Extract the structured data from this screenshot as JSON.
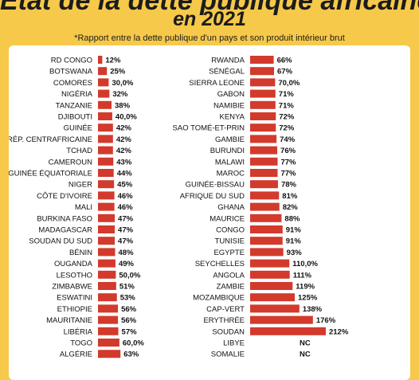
{
  "chart_data": {
    "type": "bar",
    "title": "Etat de la dette publique africaine",
    "subtitle": "en 2021",
    "note": "*Rapport entre la dette publique d'un pays et son produit intérieur brut",
    "bar_color": "#d23a2c",
    "left_column": [
      {
        "country": "RD CONGO",
        "value": 12,
        "label": "12%"
      },
      {
        "country": "BOTSWANA",
        "value": 25,
        "label": "25%"
      },
      {
        "country": "COMORES",
        "value": 30,
        "label": "30,0%"
      },
      {
        "country": "NIGÉRIA",
        "value": 32,
        "label": "32%"
      },
      {
        "country": "TANZANIE",
        "value": 38,
        "label": "38%"
      },
      {
        "country": "DJIBOUTI",
        "value": 40,
        "label": "40,0%"
      },
      {
        "country": "GUINÉE",
        "value": 42,
        "label": "42%"
      },
      {
        "country": "RÉP. CENTRAFRICAINE",
        "value": 42,
        "label": "42%"
      },
      {
        "country": "TCHAD",
        "value": 42,
        "label": "42%"
      },
      {
        "country": "CAMEROUN",
        "value": 43,
        "label": "43%"
      },
      {
        "country": "GUINÉE ÉQUATORIALE",
        "value": 44,
        "label": "44%"
      },
      {
        "country": "NIGER",
        "value": 45,
        "label": "45%"
      },
      {
        "country": "CÔTE D'IVOIRE",
        "value": 46,
        "label": "46%"
      },
      {
        "country": "MALI",
        "value": 46,
        "label": "46%"
      },
      {
        "country": "BURKINA FASO",
        "value": 47,
        "label": "47%"
      },
      {
        "country": "MADAGASCAR",
        "value": 47,
        "label": "47%"
      },
      {
        "country": "SOUDAN DU SUD",
        "value": 47,
        "label": "47%"
      },
      {
        "country": "BÉNIN",
        "value": 48,
        "label": "48%"
      },
      {
        "country": "OUGANDA",
        "value": 49,
        "label": "49%"
      },
      {
        "country": "LESOTHO",
        "value": 50,
        "label": "50,0%"
      },
      {
        "country": "ZIMBABWE",
        "value": 51,
        "label": "51%"
      },
      {
        "country": "ESWATINI",
        "value": 53,
        "label": "53%"
      },
      {
        "country": "ETHIOPIE",
        "value": 56,
        "label": "56%"
      },
      {
        "country": "MAURITANIE",
        "value": 56,
        "label": "56%"
      },
      {
        "country": "LIBÉRIA",
        "value": 57,
        "label": "57%"
      },
      {
        "country": "TOGO",
        "value": 60,
        "label": "60,0%"
      },
      {
        "country": "ALGÉRIE",
        "value": 63,
        "label": "63%"
      }
    ],
    "right_column": [
      {
        "country": "RWANDA",
        "value": 66,
        "label": "66%"
      },
      {
        "country": "SÉNÉGAL",
        "value": 67,
        "label": "67%"
      },
      {
        "country": "SIERRA LEONE",
        "value": 70,
        "label": "70,0%"
      },
      {
        "country": "GABON",
        "value": 71,
        "label": "71%"
      },
      {
        "country": "NAMIBIE",
        "value": 71,
        "label": "71%"
      },
      {
        "country": "KENYA",
        "value": 72,
        "label": "72%"
      },
      {
        "country": "SAO TOMÉ-ET-PRIN",
        "value": 72,
        "label": "72%"
      },
      {
        "country": "GAMBIE",
        "value": 74,
        "label": "74%"
      },
      {
        "country": "BURUNDI",
        "value": 76,
        "label": "76%"
      },
      {
        "country": "MALAWI",
        "value": 77,
        "label": "77%"
      },
      {
        "country": "MAROC",
        "value": 77,
        "label": "77%"
      },
      {
        "country": "GUINÉE-BISSAU",
        "value": 78,
        "label": "78%"
      },
      {
        "country": "AFRIQUE DU SUD",
        "value": 81,
        "label": "81%"
      },
      {
        "country": "GHANA",
        "value": 82,
        "label": "82%"
      },
      {
        "country": "MAURICE",
        "value": 88,
        "label": "88%"
      },
      {
        "country": "CONGO",
        "value": 91,
        "label": "91%"
      },
      {
        "country": "TUNISIE",
        "value": 91,
        "label": "91%"
      },
      {
        "country": "EGYPTE",
        "value": 93,
        "label": "93%"
      },
      {
        "country": "SEYCHELLES",
        "value": 110,
        "label": "110,0%"
      },
      {
        "country": "ANGOLA",
        "value": 111,
        "label": "111%"
      },
      {
        "country": "ZAMBIE",
        "value": 119,
        "label": "119%"
      },
      {
        "country": "MOZAMBIQUE",
        "value": 125,
        "label": "125%"
      },
      {
        "country": "CAP-VERT",
        "value": 138,
        "label": "138%"
      },
      {
        "country": "ERYTHRÉE",
        "value": 176,
        "label": "176%"
      },
      {
        "country": "SOUDAN",
        "value": 212,
        "label": "212%"
      },
      {
        "country": "LIBYE",
        "value": null,
        "label": "NC"
      },
      {
        "country": "SOMALIE",
        "value": null,
        "label": "NC"
      }
    ]
  }
}
